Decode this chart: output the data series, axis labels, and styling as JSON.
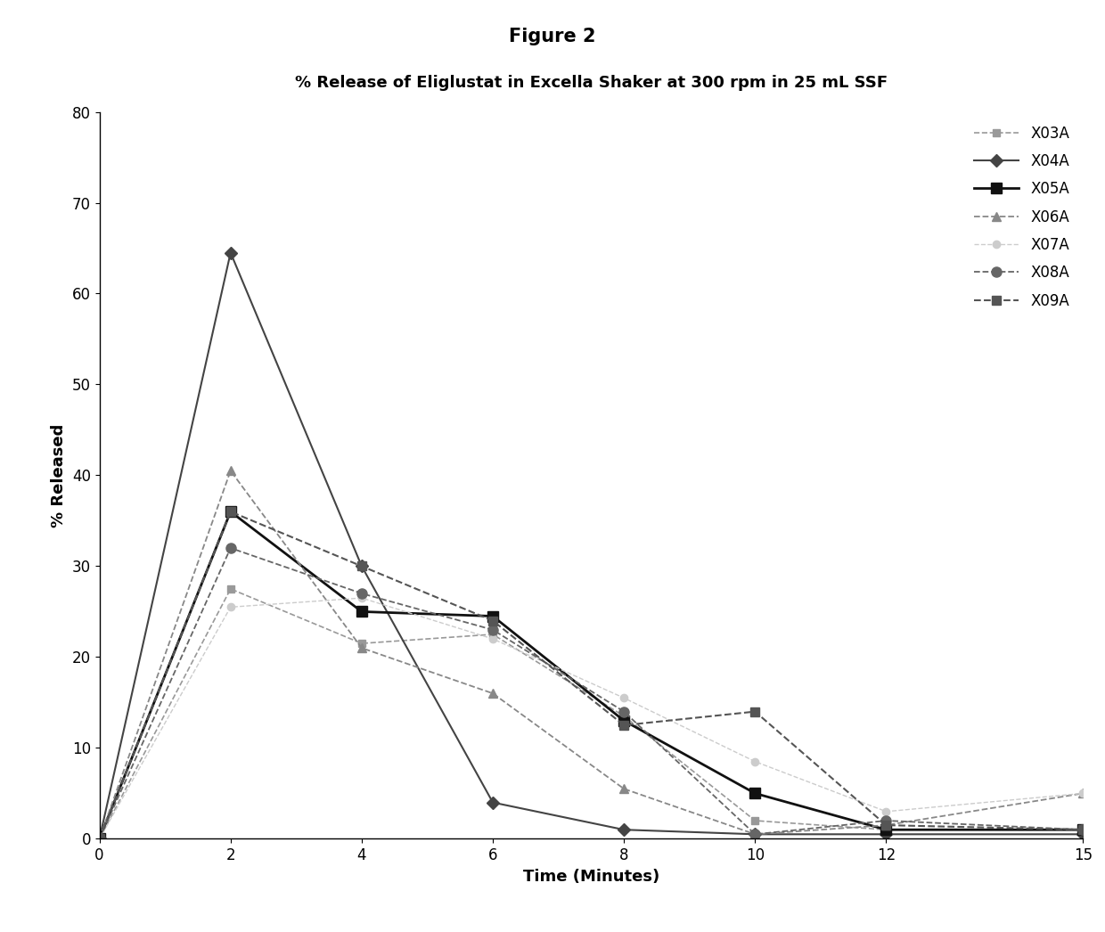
{
  "fig_title": "Figure 2",
  "chart_title": "% Release of Eliglustat in Excella Shaker at 300 rpm in 25 mL SSF",
  "xlabel": "Time (Minutes)",
  "ylabel": "% Released",
  "xlim": [
    0,
    15
  ],
  "ylim": [
    0,
    80
  ],
  "xticks": [
    0,
    2,
    4,
    6,
    8,
    10,
    12,
    15
  ],
  "yticks": [
    0,
    10,
    20,
    30,
    40,
    50,
    60,
    70,
    80
  ],
  "series": [
    {
      "label": "X03A",
      "x": [
        0,
        2,
        4,
        6,
        8,
        10,
        12,
        15
      ],
      "y": [
        0,
        27.5,
        21.5,
        22.5,
        13.5,
        2.0,
        1.0,
        1.0
      ],
      "color": "#999999",
      "marker": "s",
      "markersize": 6,
      "linewidth": 1.2,
      "linestyle": "--"
    },
    {
      "label": "X04A",
      "x": [
        0,
        2,
        4,
        6,
        8,
        10,
        12,
        15
      ],
      "y": [
        0,
        64.5,
        30.0,
        4.0,
        1.0,
        0.5,
        0.5,
        0.5
      ],
      "color": "#444444",
      "marker": "D",
      "markersize": 7,
      "linewidth": 1.5,
      "linestyle": "-"
    },
    {
      "label": "X05A",
      "x": [
        0,
        2,
        4,
        6,
        8,
        10,
        12,
        15
      ],
      "y": [
        0,
        36.0,
        25.0,
        24.5,
        13.0,
        5.0,
        1.0,
        1.0
      ],
      "color": "#111111",
      "marker": "s",
      "markersize": 8,
      "linewidth": 2.0,
      "linestyle": "-"
    },
    {
      "label": "X06A",
      "x": [
        0,
        2,
        4,
        6,
        8,
        10,
        12,
        15
      ],
      "y": [
        0,
        40.5,
        21.0,
        16.0,
        5.5,
        0.5,
        1.5,
        5.0
      ],
      "color": "#888888",
      "marker": "^",
      "markersize": 7,
      "linewidth": 1.3,
      "linestyle": "--"
    },
    {
      "label": "X07A",
      "x": [
        0,
        2,
        4,
        6,
        8,
        10,
        12,
        15
      ],
      "y": [
        0,
        25.5,
        26.5,
        22.0,
        15.5,
        8.5,
        3.0,
        5.0
      ],
      "color": "#cccccc",
      "marker": "o",
      "markersize": 6,
      "linewidth": 1.0,
      "linestyle": "--"
    },
    {
      "label": "X08A",
      "x": [
        0,
        2,
        4,
        6,
        8,
        10,
        12,
        15
      ],
      "y": [
        0,
        32.0,
        27.0,
        23.0,
        14.0,
        0.5,
        2.0,
        1.0
      ],
      "color": "#666666",
      "marker": "o",
      "markersize": 8,
      "linewidth": 1.3,
      "linestyle": "--"
    },
    {
      "label": "X09A",
      "x": [
        0,
        2,
        4,
        6,
        8,
        10,
        12,
        15
      ],
      "y": [
        0,
        36.0,
        30.0,
        24.0,
        12.5,
        14.0,
        1.5,
        1.0
      ],
      "color": "#555555",
      "marker": "s",
      "markersize": 7,
      "linewidth": 1.5,
      "linestyle": "--"
    }
  ],
  "background_color": "#ffffff",
  "fig_title_fontsize": 15,
  "chart_title_fontsize": 13,
  "label_fontsize": 13,
  "tick_fontsize": 12,
  "legend_fontsize": 12
}
